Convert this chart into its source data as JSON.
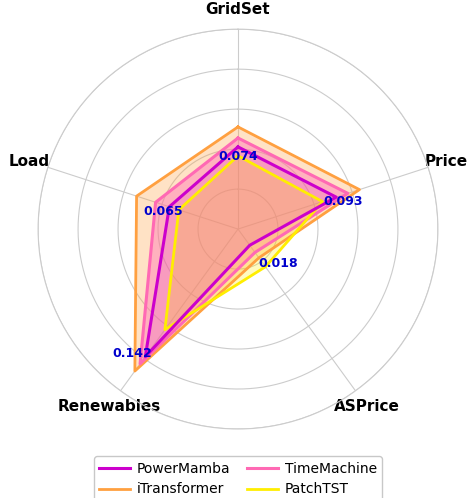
{
  "categories": [
    "GridSet",
    "Price",
    "ASPrice",
    "Renewables",
    "Load"
  ],
  "series_order": [
    "iTransformer",
    "TimeMachine",
    "PatchTST",
    "PowerMamba"
  ],
  "series": {
    "PowerMamba": [
      0.074,
      0.093,
      0.018,
      0.142,
      0.065
    ],
    "TimeMachine": [
      0.082,
      0.104,
      0.026,
      0.15,
      0.078
    ],
    "iTransformer": [
      0.092,
      0.115,
      0.032,
      0.158,
      0.096
    ],
    "PatchTST": [
      0.066,
      0.08,
      0.042,
      0.112,
      0.056
    ]
  },
  "colors": {
    "PowerMamba": "#CC00CC",
    "TimeMachine": "#FF69B4",
    "iTransformer": "#FFA040",
    "PatchTST": "#FFEE00"
  },
  "line_widths": {
    "PowerMamba": 2.2,
    "TimeMachine": 2.2,
    "iTransformer": 2.0,
    "PatchTST": 2.0
  },
  "fill_alpha": {
    "PowerMamba": 0.12,
    "TimeMachine": 0.4,
    "iTransformer": 0.3,
    "PatchTST": 0.25
  },
  "value_labels": {
    "GridSet": "0.074",
    "Price": "0.093",
    "ASPrice": "0.018",
    "Renewables": "0.142",
    "Load": "0.065"
  },
  "label_color": "#0000CC",
  "grid_color": "#cccccc",
  "background_color": "#ffffff",
  "figsize": [
    4.76,
    4.98
  ],
  "dpi": 100,
  "max_val": 0.18
}
